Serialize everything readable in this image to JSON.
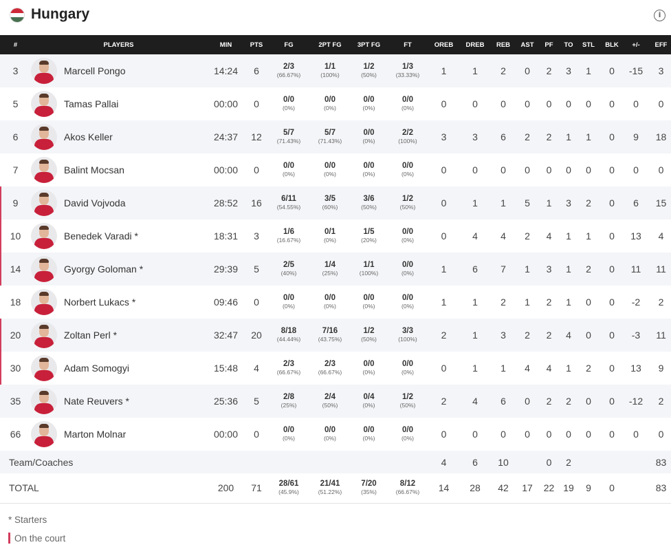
{
  "header": {
    "team_name": "Hungary",
    "info_icon": "i"
  },
  "columns": [
    "#",
    "PLAYERS",
    "MIN",
    "PTS",
    "FG",
    "2PT FG",
    "3PT FG",
    "FT",
    "OREB",
    "DREB",
    "REB",
    "AST",
    "PF",
    "TO",
    "STL",
    "BLK",
    "+/-",
    "EFF"
  ],
  "players": [
    {
      "num": "3",
      "name": "Marcell Pongo",
      "starter": "",
      "oncourt": false,
      "min": "14:24",
      "pts": "6",
      "fg": "2/3",
      "fg_pct": "(66.67%)",
      "p2": "1/1",
      "p2_pct": "(100%)",
      "p3": "1/2",
      "p3_pct": "(50%)",
      "ft": "1/3",
      "ft_pct": "(33.33%)",
      "oreb": "1",
      "dreb": "1",
      "reb": "2",
      "ast": "0",
      "pf": "2",
      "to": "3",
      "stl": "1",
      "blk": "0",
      "pm": "-15",
      "eff": "3"
    },
    {
      "num": "5",
      "name": "Tamas Pallai",
      "starter": "",
      "oncourt": false,
      "min": "00:00",
      "pts": "0",
      "fg": "0/0",
      "fg_pct": "(0%)",
      "p2": "0/0",
      "p2_pct": "(0%)",
      "p3": "0/0",
      "p3_pct": "(0%)",
      "ft": "0/0",
      "ft_pct": "(0%)",
      "oreb": "0",
      "dreb": "0",
      "reb": "0",
      "ast": "0",
      "pf": "0",
      "to": "0",
      "stl": "0",
      "blk": "0",
      "pm": "0",
      "eff": "0"
    },
    {
      "num": "6",
      "name": "Akos Keller",
      "starter": "",
      "oncourt": false,
      "min": "24:37",
      "pts": "12",
      "fg": "5/7",
      "fg_pct": "(71.43%)",
      "p2": "5/7",
      "p2_pct": "(71.43%)",
      "p3": "0/0",
      "p3_pct": "(0%)",
      "ft": "2/2",
      "ft_pct": "(100%)",
      "oreb": "3",
      "dreb": "3",
      "reb": "6",
      "ast": "2",
      "pf": "2",
      "to": "1",
      "stl": "1",
      "blk": "0",
      "pm": "9",
      "eff": "18"
    },
    {
      "num": "7",
      "name": "Balint Mocsan",
      "starter": "",
      "oncourt": false,
      "min": "00:00",
      "pts": "0",
      "fg": "0/0",
      "fg_pct": "(0%)",
      "p2": "0/0",
      "p2_pct": "(0%)",
      "p3": "0/0",
      "p3_pct": "(0%)",
      "ft": "0/0",
      "ft_pct": "(0%)",
      "oreb": "0",
      "dreb": "0",
      "reb": "0",
      "ast": "0",
      "pf": "0",
      "to": "0",
      "stl": "0",
      "blk": "0",
      "pm": "0",
      "eff": "0"
    },
    {
      "num": "9",
      "name": "David Vojvoda",
      "starter": "",
      "oncourt": true,
      "min": "28:52",
      "pts": "16",
      "fg": "6/11",
      "fg_pct": "(54.55%)",
      "p2": "3/5",
      "p2_pct": "(60%)",
      "p3": "3/6",
      "p3_pct": "(50%)",
      "ft": "1/2",
      "ft_pct": "(50%)",
      "oreb": "0",
      "dreb": "1",
      "reb": "1",
      "ast": "5",
      "pf": "1",
      "to": "3",
      "stl": "2",
      "blk": "0",
      "pm": "6",
      "eff": "15"
    },
    {
      "num": "10",
      "name": "Benedek Varadi",
      "starter": "*",
      "oncourt": true,
      "min": "18:31",
      "pts": "3",
      "fg": "1/6",
      "fg_pct": "(16.67%)",
      "p2": "0/1",
      "p2_pct": "(0%)",
      "p3": "1/5",
      "p3_pct": "(20%)",
      "ft": "0/0",
      "ft_pct": "(0%)",
      "oreb": "0",
      "dreb": "4",
      "reb": "4",
      "ast": "2",
      "pf": "4",
      "to": "1",
      "stl": "1",
      "blk": "0",
      "pm": "13",
      "eff": "4"
    },
    {
      "num": "14",
      "name": "Gyorgy Goloman",
      "starter": "*",
      "oncourt": true,
      "min": "29:39",
      "pts": "5",
      "fg": "2/5",
      "fg_pct": "(40%)",
      "p2": "1/4",
      "p2_pct": "(25%)",
      "p3": "1/1",
      "p3_pct": "(100%)",
      "ft": "0/0",
      "ft_pct": "(0%)",
      "oreb": "1",
      "dreb": "6",
      "reb": "7",
      "ast": "1",
      "pf": "3",
      "to": "1",
      "stl": "2",
      "blk": "0",
      "pm": "11",
      "eff": "11"
    },
    {
      "num": "18",
      "name": "Norbert Lukacs",
      "starter": "*",
      "oncourt": false,
      "min": "09:46",
      "pts": "0",
      "fg": "0/0",
      "fg_pct": "(0%)",
      "p2": "0/0",
      "p2_pct": "(0%)",
      "p3": "0/0",
      "p3_pct": "(0%)",
      "ft": "0/0",
      "ft_pct": "(0%)",
      "oreb": "1",
      "dreb": "1",
      "reb": "2",
      "ast": "1",
      "pf": "2",
      "to": "1",
      "stl": "0",
      "blk": "0",
      "pm": "-2",
      "eff": "2"
    },
    {
      "num": "20",
      "name": "Zoltan Perl",
      "starter": "*",
      "oncourt": true,
      "min": "32:47",
      "pts": "20",
      "fg": "8/18",
      "fg_pct": "(44.44%)",
      "p2": "7/16",
      "p2_pct": "(43.75%)",
      "p3": "1/2",
      "p3_pct": "(50%)",
      "ft": "3/3",
      "ft_pct": "(100%)",
      "oreb": "2",
      "dreb": "1",
      "reb": "3",
      "ast": "2",
      "pf": "2",
      "to": "4",
      "stl": "0",
      "blk": "0",
      "pm": "-3",
      "eff": "11"
    },
    {
      "num": "30",
      "name": "Adam Somogyi",
      "starter": "",
      "oncourt": true,
      "min": "15:48",
      "pts": "4",
      "fg": "2/3",
      "fg_pct": "(66.67%)",
      "p2": "2/3",
      "p2_pct": "(66.67%)",
      "p3": "0/0",
      "p3_pct": "(0%)",
      "ft": "0/0",
      "ft_pct": "(0%)",
      "oreb": "0",
      "dreb": "1",
      "reb": "1",
      "ast": "4",
      "pf": "4",
      "to": "1",
      "stl": "2",
      "blk": "0",
      "pm": "13",
      "eff": "9"
    },
    {
      "num": "35",
      "name": "Nate Reuvers",
      "starter": "*",
      "oncourt": false,
      "min": "25:36",
      "pts": "5",
      "fg": "2/8",
      "fg_pct": "(25%)",
      "p2": "2/4",
      "p2_pct": "(50%)",
      "p3": "0/4",
      "p3_pct": "(0%)",
      "ft": "1/2",
      "ft_pct": "(50%)",
      "oreb": "2",
      "dreb": "4",
      "reb": "6",
      "ast": "0",
      "pf": "2",
      "to": "2",
      "stl": "0",
      "blk": "0",
      "pm": "-12",
      "eff": "2"
    },
    {
      "num": "66",
      "name": "Marton Molnar",
      "starter": "",
      "oncourt": false,
      "min": "00:00",
      "pts": "0",
      "fg": "0/0",
      "fg_pct": "(0%)",
      "p2": "0/0",
      "p2_pct": "(0%)",
      "p3": "0/0",
      "p3_pct": "(0%)",
      "ft": "0/0",
      "ft_pct": "(0%)",
      "oreb": "0",
      "dreb": "0",
      "reb": "0",
      "ast": "0",
      "pf": "0",
      "to": "0",
      "stl": "0",
      "blk": "0",
      "pm": "0",
      "eff": "0"
    }
  ],
  "team_row": {
    "label": "Team/Coaches",
    "oreb": "4",
    "dreb": "6",
    "reb": "10",
    "pf": "0",
    "to": "2",
    "eff": "83"
  },
  "total_row": {
    "label": "TOTAL",
    "min": "200",
    "pts": "71",
    "fg": "28/61",
    "fg_pct": "(45.9%)",
    "p2": "21/41",
    "p2_pct": "(51.22%)",
    "p3": "7/20",
    "p3_pct": "(35%)",
    "ft": "8/12",
    "ft_pct": "(66.67%)",
    "oreb": "14",
    "dreb": "28",
    "reb": "42",
    "ast": "17",
    "pf": "22",
    "to": "19",
    "stl": "9",
    "blk": "0",
    "eff": "83"
  },
  "legend": {
    "starters": "* Starters",
    "on_court": "On the court"
  },
  "colors": {
    "header_bg": "#1e1e1e",
    "on_court_accent": "#d23d5c",
    "flag_red": "#ce2939",
    "flag_green": "#477050"
  }
}
